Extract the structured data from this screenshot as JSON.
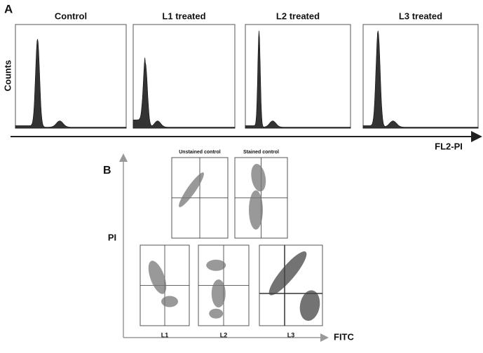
{
  "panel_a": {
    "label": "A",
    "y_label": "Counts",
    "x_label": "FL2-PI",
    "histograms": [
      {
        "title": "Control"
      },
      {
        "title": "L1 treated"
      },
      {
        "title": "L2 treated"
      },
      {
        "title": "L3 treated"
      }
    ]
  },
  "panel_b": {
    "label": "B",
    "y_label": "PI",
    "x_label": "FITC",
    "plots": [
      {
        "title": "Unstained control"
      },
      {
        "title": "Stained control"
      },
      {
        "caption": "L1"
      },
      {
        "caption": "L2"
      },
      {
        "caption": "L3"
      }
    ]
  }
}
